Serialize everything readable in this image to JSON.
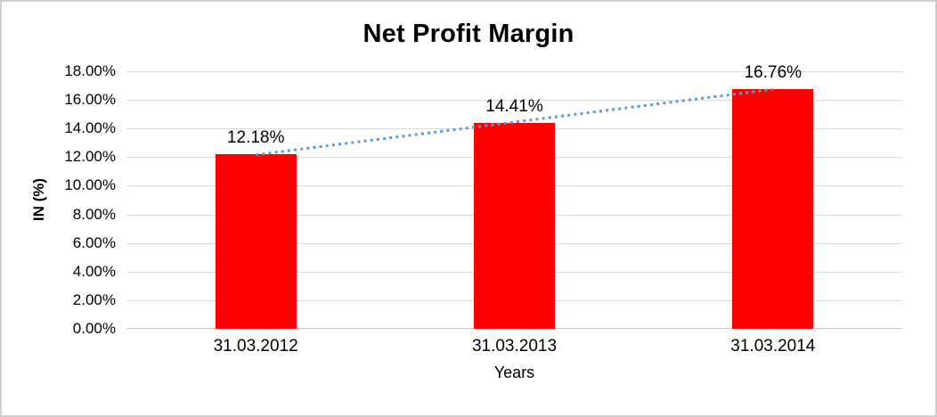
{
  "window": {
    "background_color": "#FFFFFF",
    "frame_border_color": "#CFCFCF"
  },
  "chart_data": {
    "type": "bar",
    "title": "Net Profit Margin",
    "xlabel": "Years",
    "ylabel": "IN (%)",
    "categories": [
      "31.03.2012",
      "31.03.2013",
      "31.03.2014"
    ],
    "series": [
      {
        "name": "Net Profit Margin",
        "values": [
          12.18,
          14.41,
          16.76
        ]
      }
    ],
    "values": [
      12.18,
      14.41,
      16.76
    ],
    "data_labels": [
      "12.18%",
      "14.41%",
      "16.76%"
    ],
    "y_ticks": [
      "0.00%",
      "2.00%",
      "4.00%",
      "6.00%",
      "8.00%",
      "10.00%",
      "12.00%",
      "14.00%",
      "16.00%",
      "18.00%"
    ],
    "ylim": [
      0,
      18
    ],
    "y_step": 2,
    "grid": true,
    "legend": "none",
    "bar_color": "#FF0000",
    "gridline_color": "#D9D9D9",
    "text_color": "#000000",
    "trendline": {
      "type": "linear",
      "style": "dotted",
      "color": "#5B9BD5",
      "start_value": 12.16,
      "end_value": 16.74
    }
  }
}
